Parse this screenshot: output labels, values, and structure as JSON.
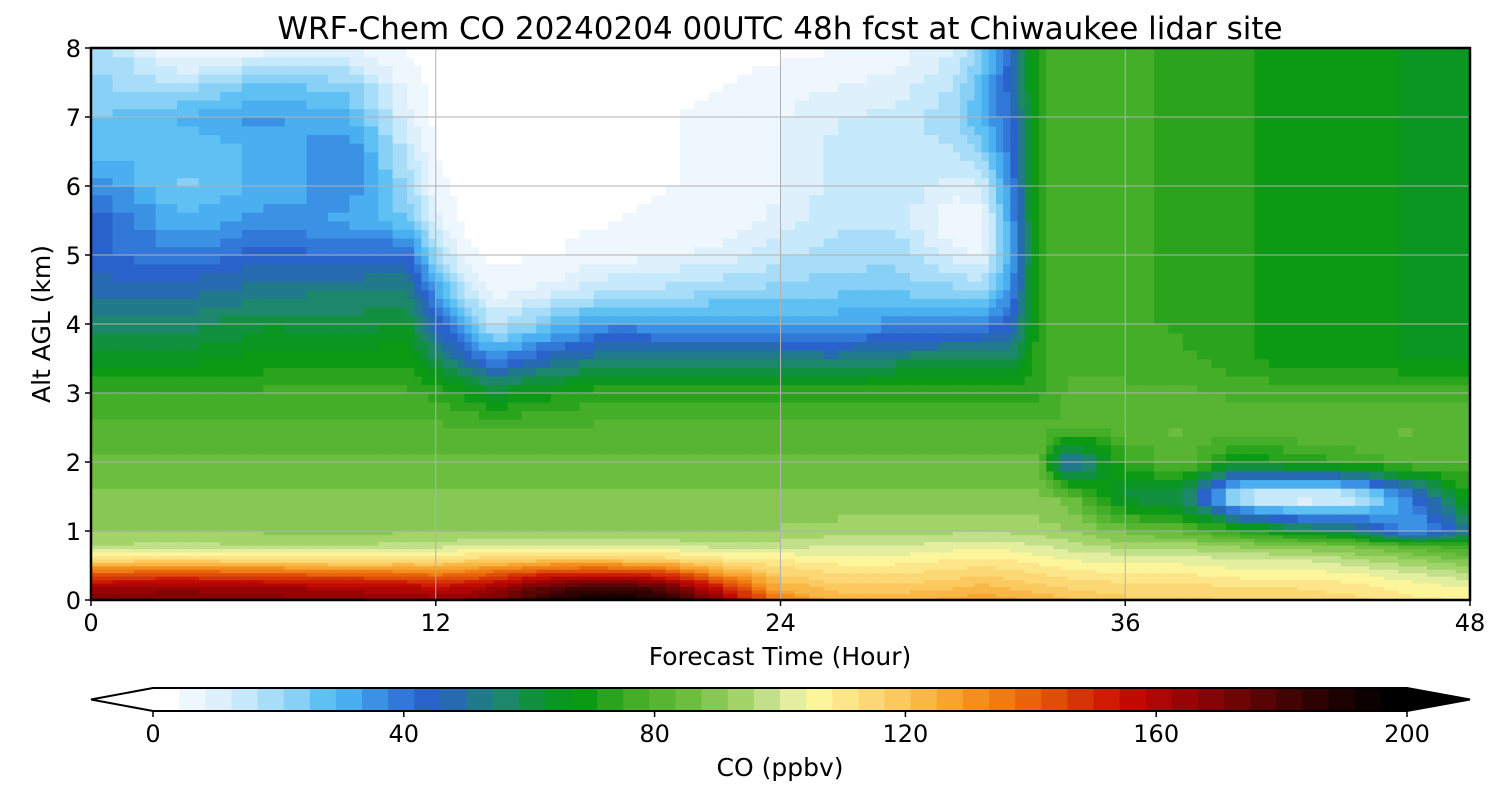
{
  "chart_data": {
    "type": "heatmap",
    "title": "WRF-Chem CO  20240204 00UTC 48h fcst at Chiwaukee lidar site",
    "xlabel": "Forecast Time (Hour)",
    "ylabel": "Alt AGL (km)",
    "xlim": [
      0,
      48
    ],
    "ylim": [
      0,
      8
    ],
    "xticks": [
      "0",
      "12",
      "24",
      "36",
      "48"
    ],
    "yticks": [
      "0",
      "1",
      "2",
      "3",
      "4",
      "5",
      "6",
      "7",
      "8"
    ],
    "grid": true,
    "colorbar": {
      "label": "CO  (ppbv)",
      "range": [
        0,
        200
      ],
      "ticks": [
        "0",
        "40",
        "80",
        "120",
        "160",
        "200"
      ],
      "extend": "both",
      "colors": [
        "#ffffff",
        "#eef7fe",
        "#def0fc",
        "#c6e9fb",
        "#a7ddf8",
        "#88d0f6",
        "#5fc0f4",
        "#4aaff0",
        "#3b92e4",
        "#3178d8",
        "#2a62cc",
        "#266bb0",
        "#217a8c",
        "#1c876a",
        "#119040",
        "#0a9620",
        "#0c9a15",
        "#2aa41d",
        "#45ae29",
        "#58b532",
        "#6cbe3e",
        "#86c853",
        "#a3d46a",
        "#c2e08a",
        "#e3ee9f",
        "#fcf59a",
        "#fde68a",
        "#fcd874",
        "#fbc95e",
        "#f9b746",
        "#f7a431",
        "#f48f1e",
        "#ef7b12",
        "#e8650c",
        "#df4e09",
        "#d53406",
        "#cd1c03",
        "#c10b02",
        "#ad0604",
        "#980406",
        "#820405",
        "#6c0504",
        "#560504",
        "#420303",
        "#2e0202",
        "#1c0101",
        "#0c0000",
        "#000000"
      ]
    },
    "x_hours": [
      0,
      3,
      6,
      9,
      11,
      12,
      13,
      14,
      16,
      18,
      20,
      22,
      24,
      26,
      28,
      30,
      31,
      32,
      33,
      34,
      36,
      38,
      40,
      42,
      44,
      46,
      48
    ],
    "z_km": [
      0,
      0.2,
      0.4,
      0.6,
      0.8,
      1.0,
      1.5,
      2.0,
      2.5,
      3.0,
      3.5,
      4.0,
      4.5,
      5.0,
      5.5,
      6.0,
      6.5,
      7.0,
      7.5,
      8.0
    ],
    "co_ppbv": [
      [
        170,
        162,
        140,
        112,
        96,
        91,
        88,
        84,
        80,
        76,
        64,
        56,
        48,
        44,
        46,
        38,
        28,
        24,
        22,
        22
      ],
      [
        172,
        164,
        142,
        114,
        97,
        92,
        88,
        84,
        80,
        76,
        64,
        56,
        48,
        38,
        30,
        24,
        26,
        30,
        16,
        4
      ],
      [
        170,
        163,
        140,
        112,
        96,
        91,
        88,
        84,
        80,
        76,
        68,
        62,
        52,
        44,
        36,
        30,
        30,
        35,
        26,
        6
      ],
      [
        168,
        160,
        138,
        110,
        95,
        90,
        88,
        84,
        80,
        76,
        68,
        60,
        54,
        42,
        32,
        36,
        38,
        30,
        22,
        8
      ],
      [
        166,
        158,
        136,
        112,
        98,
        91,
        88,
        84,
        80,
        76,
        70,
        64,
        55,
        44,
        26,
        20,
        16,
        10,
        6,
        4
      ],
      [
        166,
        156,
        134,
        112,
        98,
        91,
        88,
        84,
        80,
        74,
        58,
        46,
        34,
        20,
        10,
        6,
        4,
        3,
        3,
        3
      ],
      [
        168,
        158,
        136,
        114,
        99,
        91,
        88,
        84,
        80,
        70,
        48,
        30,
        16,
        6,
        3,
        2,
        2,
        2,
        2,
        2
      ],
      [
        172,
        162,
        140,
        115,
        99,
        91,
        88,
        84,
        80,
        64,
        36,
        16,
        6,
        3,
        2,
        2,
        2,
        2,
        2,
        2
      ],
      [
        190,
        175,
        148,
        118,
        100,
        91,
        88,
        84,
        80,
        70,
        48,
        26,
        10,
        4,
        3,
        2,
        2,
        2,
        2,
        2
      ],
      [
        198,
        182,
        150,
        118,
        100,
        91,
        88,
        84,
        80,
        74,
        54,
        36,
        16,
        6,
        4,
        3,
        3,
        3,
        3,
        2
      ],
      [
        190,
        175,
        145,
        115,
        99,
        91,
        88,
        84,
        80,
        74,
        54,
        34,
        18,
        8,
        5,
        4,
        4,
        4,
        3,
        2
      ],
      [
        168,
        150,
        128,
        110,
        98,
        91,
        88,
        84,
        80,
        74,
        54,
        34,
        20,
        10,
        6,
        5,
        5,
        5,
        4,
        3
      ],
      [
        134,
        124,
        116,
        108,
        98,
        92,
        88,
        84,
        80,
        74,
        54,
        32,
        22,
        16,
        10,
        8,
        8,
        8,
        6,
        3
      ],
      [
        124,
        118,
        112,
        106,
        100,
        94,
        88,
        84,
        80,
        74,
        52,
        32,
        24,
        18,
        16,
        14,
        14,
        12,
        8,
        4
      ],
      [
        124,
        118,
        112,
        106,
        100,
        94,
        88,
        84,
        80,
        74,
        56,
        36,
        24,
        20,
        16,
        16,
        16,
        14,
        10,
        6
      ],
      [
        126,
        120,
        114,
        108,
        102,
        95,
        88,
        84,
        80,
        74,
        58,
        38,
        22,
        10,
        4,
        10,
        16,
        20,
        16,
        12
      ],
      [
        128,
        122,
        116,
        108,
        102,
        95,
        88,
        84,
        80,
        74,
        58,
        38,
        20,
        8,
        5,
        12,
        22,
        30,
        28,
        22
      ],
      [
        126,
        120,
        114,
        108,
        102,
        95,
        88,
        84,
        80,
        74,
        56,
        44,
        36,
        30,
        32,
        36,
        40,
        42,
        44,
        44
      ],
      [
        124,
        118,
        112,
        106,
        100,
        94,
        88,
        84,
        80,
        74,
        74,
        74,
        74,
        74,
        74,
        74,
        74,
        74,
        74,
        74
      ],
      [
        122,
        116,
        110,
        104,
        98,
        92,
        86,
        42,
        80,
        80,
        78,
        78,
        78,
        78,
        78,
        78,
        78,
        78,
        78,
        78
      ],
      [
        118,
        114,
        108,
        102,
        94,
        86,
        60,
        74,
        82,
        80,
        78,
        76,
        76,
        76,
        76,
        76,
        76,
        76,
        76,
        76
      ],
      [
        118,
        114,
        108,
        102,
        94,
        82,
        56,
        82,
        84,
        80,
        76,
        74,
        74,
        74,
        74,
        74,
        74,
        74,
        74,
        74
      ],
      [
        116,
        112,
        106,
        100,
        90,
        74,
        12,
        66,
        82,
        78,
        72,
        72,
        72,
        72,
        72,
        72,
        72,
        72,
        72,
        72
      ],
      [
        116,
        112,
        106,
        100,
        88,
        64,
        4,
        72,
        84,
        78,
        68,
        68,
        68,
        68,
        68,
        68,
        68,
        68,
        68,
        68
      ],
      [
        114,
        110,
        104,
        96,
        86,
        56,
        10,
        76,
        84,
        78,
        68,
        68,
        68,
        68,
        68,
        68,
        68,
        68,
        68,
        68
      ],
      [
        110,
        106,
        100,
        92,
        80,
        30,
        40,
        80,
        84,
        78,
        66,
        66,
        66,
        66,
        66,
        66,
        66,
        66,
        66,
        66
      ],
      [
        108,
        104,
        96,
        86,
        76,
        52,
        70,
        80,
        82,
        78,
        66,
        66,
        66,
        66,
        66,
        66,
        66,
        66,
        66,
        66
      ]
    ]
  }
}
